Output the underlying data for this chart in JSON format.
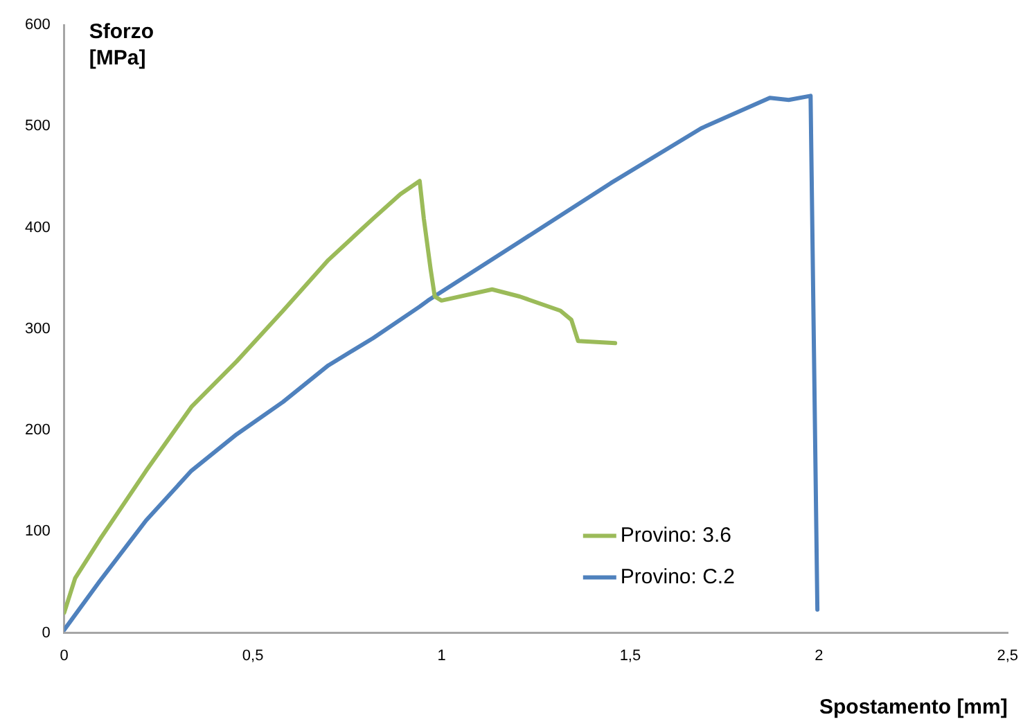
{
  "chart_data": {
    "type": "line",
    "xlabel": "Spostamento [mm]",
    "ylabel": "Sforzo [MPa]",
    "xlim": [
      0,
      2.5
    ],
    "ylim": [
      0,
      600
    ],
    "xticks": [
      0,
      {
        "value": 0.5,
        "label": "0,5"
      },
      1,
      {
        "value": 1.5,
        "label": "1,5"
      },
      2,
      {
        "value": 2.5,
        "label": "2,5"
      }
    ],
    "yticks": [
      0,
      100,
      200,
      300,
      400,
      500,
      600
    ],
    "grid": false,
    "legend": "bottom right",
    "marker": "none",
    "line_style": "solid",
    "series": [
      {
        "name": "Provino: 3.6",
        "color": "#9bbb59",
        "x": [
          0,
          0.029,
          0.094,
          0.217,
          0.337,
          0.457,
          0.58,
          0.7,
          0.819,
          0.891,
          0.942,
          0.953,
          0.971,
          0.982,
          1.0,
          1.134,
          1.207,
          1.315,
          1.344,
          1.362,
          1.46
        ],
        "values": [
          20,
          54,
          92,
          160,
          223,
          268,
          318,
          368,
          409,
          433,
          446,
          409,
          359,
          332,
          328,
          339,
          332,
          318,
          309,
          288,
          286
        ]
      },
      {
        "name": "Provino: C.2",
        "color": "#4f81bd",
        "x": [
          0,
          0.094,
          0.217,
          0.337,
          0.457,
          0.58,
          0.7,
          0.819,
          0.942,
          0.964,
          1.207,
          1.449,
          1.688,
          1.87,
          1.92,
          1.978,
          1.996
        ],
        "values": [
          3,
          51,
          111,
          160,
          196,
          228,
          264,
          291,
          322,
          328,
          386,
          444,
          498,
          528,
          526,
          530,
          23
        ]
      }
    ]
  }
}
